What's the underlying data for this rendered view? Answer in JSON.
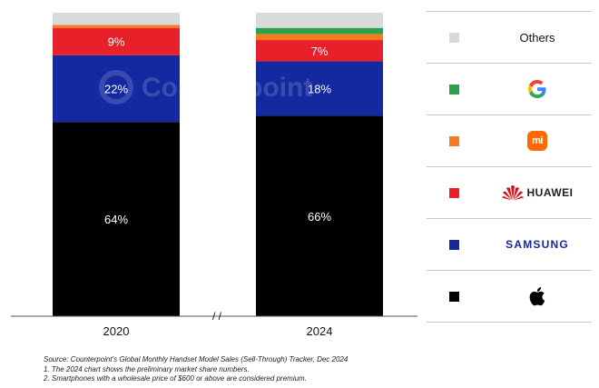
{
  "chart_data": {
    "type": "bar",
    "stacked": true,
    "normalized": true,
    "categories": [
      "2020",
      "2024"
    ],
    "axis_break_label": "/ /",
    "ylim": [
      0,
      100
    ],
    "series": [
      {
        "name": "Apple",
        "icon": "apple-logo",
        "color": "#000000",
        "values": [
          64,
          66
        ],
        "labels": [
          "64%",
          "66%"
        ]
      },
      {
        "name": "Samsung",
        "icon": "samsung-logo",
        "color": "#1428a0",
        "values": [
          22,
          18
        ],
        "labels": [
          "22%",
          "18%"
        ]
      },
      {
        "name": "Huawei",
        "icon": "huawei-logo",
        "color": "#e8202a",
        "values": [
          9,
          7
        ],
        "labels": [
          "9%",
          "7%"
        ]
      },
      {
        "name": "Xiaomi",
        "icon": "xiaomi-logo",
        "color": "#f47b20",
        "values": [
          1,
          2
        ],
        "labels": [
          "",
          ""
        ]
      },
      {
        "name": "Google",
        "icon": "google-logo",
        "color": "#2ca24a",
        "values": [
          0,
          2
        ],
        "labels": [
          "",
          ""
        ]
      },
      {
        "name": "Others",
        "icon": "others-swatch",
        "color": "#d9d9d9",
        "values": [
          4,
          5
        ],
        "labels": [
          "",
          ""
        ]
      }
    ],
    "legend_position": "right",
    "grid": false
  },
  "legend": {
    "others_label": "Others",
    "huawei_text": "HUAWEI",
    "samsung_text": "SAMSUNG",
    "xiaomi_text": "mi"
  },
  "watermark": {
    "text": "Counterpoint"
  },
  "footnotes": {
    "source": "Source: Counterpoint's Global Monthly Handset Model Sales (Sell-Through) Tracker, Dec 2024",
    "note1": "1. The 2024 chart shows the preliminary market share numbers.",
    "note2": "2. Smartphones with a wholesale price of $600 or above are considered premium."
  }
}
